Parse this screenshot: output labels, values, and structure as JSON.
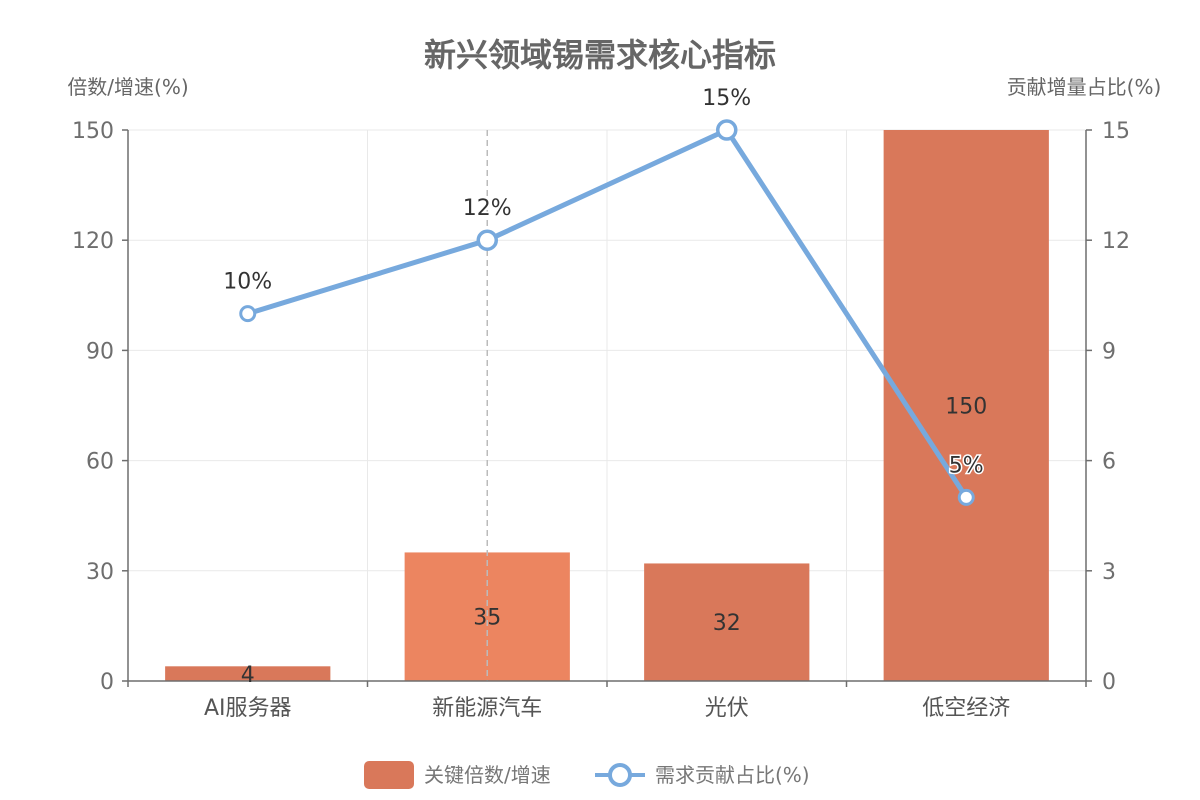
{
  "chart_data": {
    "type": "bar",
    "title": "新兴领域锡需求核心指标",
    "categories": [
      "AI服务器",
      "新能源汽车",
      "光伏",
      "低空经济"
    ],
    "y_left": {
      "name": "倍数/增速(%)",
      "min": 0,
      "max": 150,
      "ticks": [
        "0",
        "30",
        "60",
        "90",
        "120",
        "150"
      ]
    },
    "y_right": {
      "name": "贡献增量占比(%)",
      "min": 0,
      "max": 15,
      "ticks": [
        "0",
        "3",
        "6",
        "9",
        "12",
        "15"
      ]
    },
    "series": [
      {
        "name": "关键倍数/增速",
        "type": "bar",
        "axis": "left",
        "values": [
          4,
          35,
          32,
          150
        ],
        "labels": [
          "4",
          "35",
          "32",
          "150"
        ],
        "color": "#d9785a",
        "highlight_color": "#ec8560",
        "highlight_index": 1
      },
      {
        "name": "需求贡献占比(%)",
        "type": "line",
        "axis": "right",
        "values": [
          10,
          12,
          15,
          5
        ],
        "labels": [
          "10%",
          "12%",
          "15%",
          "5%"
        ],
        "color": "#77a9dd"
      }
    ],
    "grid": true,
    "legend": "bottom"
  }
}
